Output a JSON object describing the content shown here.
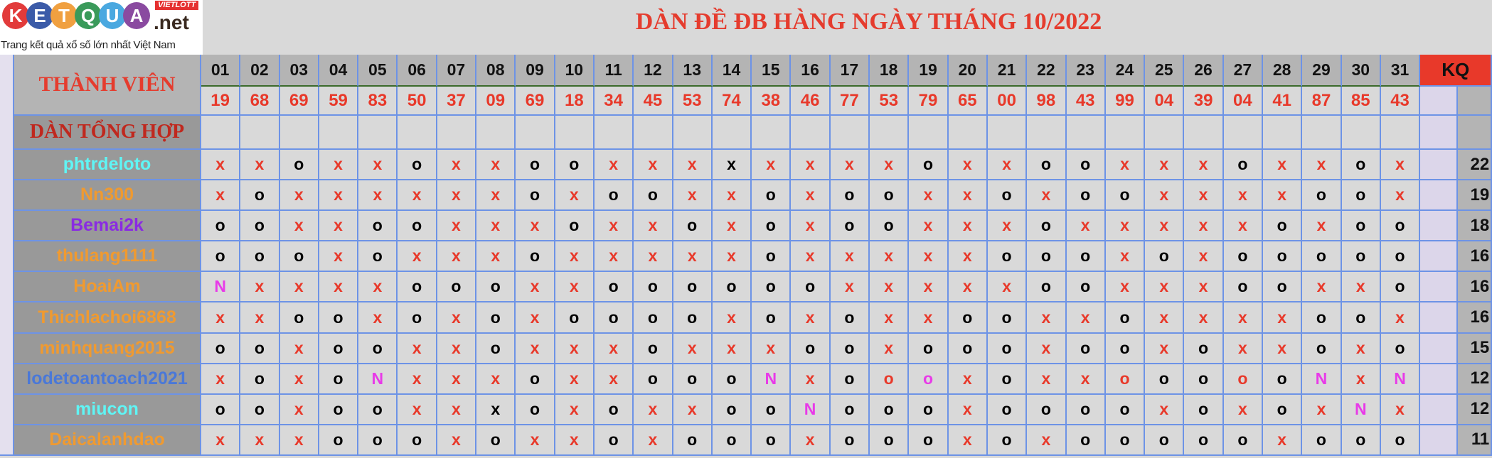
{
  "logo": {
    "letters": [
      "K",
      "E",
      "T",
      "Q",
      "U",
      "A"
    ],
    "letter_colors": [
      "#e23b3b",
      "#3b5ba8",
      "#f0a040",
      "#3a9a5a",
      "#4aa8e0",
      "#8a4aa0"
    ],
    "suffix": ".net",
    "badge": "VIETLOTT",
    "tagline": "Trang kết quả xổ số lớn nhất Việt Nam"
  },
  "title": "DÀN ĐỀ ĐB HÀNG NGÀY THÁNG 10/2022",
  "header": {
    "member_label": "THÀNH VIÊN",
    "summary_label": "DÀN TỔNG HỢP",
    "kq_label": "KQ"
  },
  "days": [
    "01",
    "02",
    "03",
    "04",
    "05",
    "06",
    "07",
    "08",
    "09",
    "10",
    "11",
    "12",
    "13",
    "14",
    "15",
    "16",
    "17",
    "18",
    "19",
    "20",
    "21",
    "22",
    "23",
    "24",
    "25",
    "26",
    "27",
    "28",
    "29",
    "30",
    "31"
  ],
  "results": [
    "19",
    "68",
    "69",
    "59",
    "83",
    "50",
    "37",
    "09",
    "69",
    "18",
    "34",
    "45",
    "53",
    "74",
    "38",
    "46",
    "77",
    "53",
    "79",
    "65",
    "00",
    "98",
    "43",
    "99",
    "04",
    "39",
    "04",
    "41",
    "87",
    "85",
    "43"
  ],
  "marks": {
    "x": {
      "text": "x",
      "color": "#e8392a"
    },
    "xb": {
      "text": "x",
      "color": "#000000"
    },
    "o": {
      "text": "o",
      "color": "#000000"
    },
    "or": {
      "text": "o",
      "color": "#e8392a"
    },
    "om": {
      "text": "o",
      "color": "#e83ae8"
    },
    "N": {
      "text": "N",
      "color": "#e83ae8"
    }
  },
  "members": [
    {
      "name": "phtrdeloto",
      "color": "#5ff5f5",
      "kq": "22",
      "cells": [
        "x",
        "x",
        "o",
        "x",
        "x",
        "o",
        "x",
        "x",
        "o",
        "o",
        "x",
        "x",
        "x",
        "xb",
        "x",
        "x",
        "x",
        "x",
        "o",
        "x",
        "x",
        "o",
        "o",
        "x",
        "x",
        "x",
        "o",
        "x",
        "x",
        "o",
        "x"
      ]
    },
    {
      "name": "Nn300",
      "color": "#f09a30",
      "kq": "19",
      "cells": [
        "x",
        "o",
        "x",
        "x",
        "x",
        "x",
        "x",
        "x",
        "o",
        "x",
        "o",
        "o",
        "x",
        "x",
        "o",
        "x",
        "o",
        "o",
        "x",
        "x",
        "o",
        "x",
        "o",
        "o",
        "x",
        "x",
        "x",
        "x",
        "o",
        "o",
        "x"
      ]
    },
    {
      "name": "Bemai2k",
      "color": "#8a2be2",
      "kq": "18",
      "cells": [
        "o",
        "o",
        "x",
        "x",
        "o",
        "o",
        "x",
        "x",
        "x",
        "o",
        "x",
        "x",
        "o",
        "x",
        "o",
        "x",
        "o",
        "o",
        "x",
        "x",
        "x",
        "o",
        "x",
        "x",
        "x",
        "x",
        "x",
        "o",
        "x",
        "o",
        "o"
      ]
    },
    {
      "name": "thulang1111",
      "color": "#f09a30",
      "kq": "16",
      "cells": [
        "o",
        "o",
        "o",
        "x",
        "o",
        "x",
        "x",
        "x",
        "o",
        "x",
        "x",
        "x",
        "x",
        "x",
        "o",
        "x",
        "x",
        "x",
        "x",
        "x",
        "o",
        "o",
        "o",
        "x",
        "o",
        "x",
        "o",
        "o",
        "o",
        "o",
        "o"
      ]
    },
    {
      "name": "HoaiAm",
      "color": "#f09a30",
      "kq": "16",
      "cells": [
        "N",
        "x",
        "x",
        "x",
        "x",
        "o",
        "o",
        "o",
        "x",
        "x",
        "o",
        "o",
        "o",
        "o",
        "o",
        "o",
        "x",
        "x",
        "x",
        "x",
        "x",
        "o",
        "o",
        "x",
        "x",
        "x",
        "o",
        "o",
        "x",
        "x",
        "o"
      ]
    },
    {
      "name": "Thichlachoi6868",
      "color": "#f09a30",
      "kq": "16",
      "cells": [
        "x",
        "x",
        "o",
        "o",
        "x",
        "o",
        "x",
        "o",
        "x",
        "o",
        "o",
        "o",
        "o",
        "x",
        "o",
        "x",
        "o",
        "x",
        "x",
        "o",
        "o",
        "x",
        "x",
        "o",
        "x",
        "x",
        "x",
        "x",
        "o",
        "o",
        "x"
      ]
    },
    {
      "name": "minhquang2015",
      "color": "#f09a30",
      "kq": "15",
      "cells": [
        "o",
        "o",
        "x",
        "o",
        "o",
        "x",
        "x",
        "o",
        "x",
        "x",
        "x",
        "o",
        "x",
        "x",
        "x",
        "o",
        "o",
        "x",
        "o",
        "o",
        "o",
        "x",
        "o",
        "o",
        "x",
        "o",
        "x",
        "x",
        "o",
        "x",
        "o"
      ]
    },
    {
      "name": "lodetoantoach2021",
      "color": "#4a78d8",
      "kq": "12",
      "cells": [
        "x",
        "o",
        "x",
        "o",
        "N",
        "x",
        "x",
        "x",
        "o",
        "x",
        "x",
        "o",
        "o",
        "o",
        "N",
        "x",
        "o",
        "or",
        "om",
        "x",
        "o",
        "x",
        "x",
        "or",
        "o",
        "o",
        "or",
        "o",
        "N",
        "x",
        "N"
      ]
    },
    {
      "name": "miucon",
      "color": "#5ff5f5",
      "kq": "12",
      "cells": [
        "o",
        "o",
        "x",
        "o",
        "o",
        "x",
        "x",
        "xb",
        "o",
        "x",
        "o",
        "x",
        "x",
        "o",
        "o",
        "N",
        "o",
        "o",
        "o",
        "x",
        "o",
        "o",
        "o",
        "o",
        "x",
        "o",
        "x",
        "o",
        "x",
        "N",
        "x"
      ]
    },
    {
      "name": "Daicalanhdao",
      "color": "#f09a30",
      "kq": "11",
      "cells": [
        "x",
        "x",
        "x",
        "o",
        "o",
        "o",
        "x",
        "o",
        "x",
        "x",
        "o",
        "x",
        "o",
        "o",
        "o",
        "x",
        "o",
        "o",
        "o",
        "x",
        "o",
        "x",
        "o",
        "o",
        "o",
        "o",
        "o",
        "x",
        "o",
        "o",
        "o"
      ]
    }
  ]
}
